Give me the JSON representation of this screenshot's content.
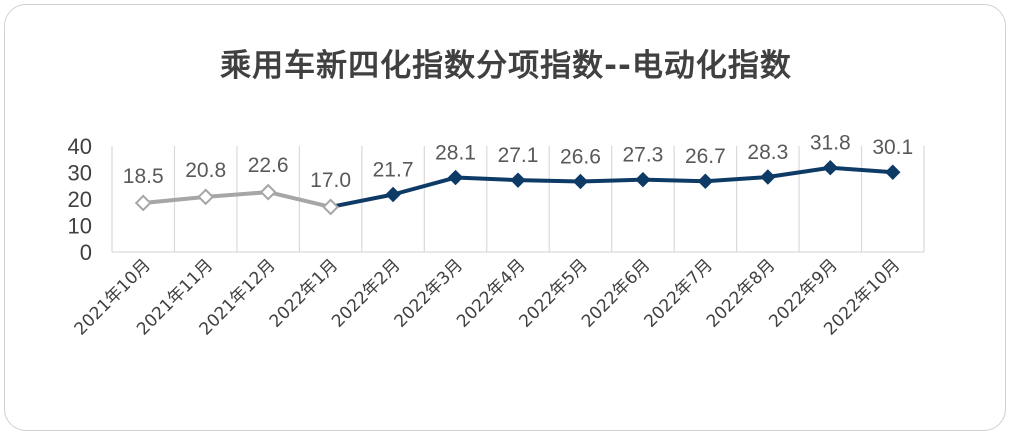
{
  "chart_data": {
    "type": "line",
    "title": "乘用车新四化指数分项指数--电动化指数",
    "xlabel": "",
    "ylabel": "",
    "ylim": [
      0,
      40
    ],
    "yticks": [
      "0",
      "10",
      "20",
      "30",
      "40"
    ],
    "grid": "vertical",
    "legend": "none",
    "categories": [
      "2021年10月",
      "2021年11月",
      "2021年12月",
      "2022年1月",
      "2022年2月",
      "2022年3月",
      "2022年4月",
      "2022年5月",
      "2022年6月",
      "2022年7月",
      "2022年8月",
      "2022年9月",
      "2022年10月"
    ],
    "values": [
      18.5,
      20.8,
      22.6,
      17.0,
      21.7,
      28.1,
      27.1,
      26.6,
      27.3,
      26.7,
      28.3,
      31.8,
      30.1
    ],
    "value_labels": [
      "18.5",
      "20.8",
      "22.6",
      "17.0",
      "21.7",
      "28.1",
      "27.1",
      "26.6",
      "27.3",
      "26.7",
      "28.3",
      "31.8",
      "30.1"
    ],
    "colors": {
      "history": "#a6a6a6",
      "current": "#0e3a66",
      "grid": "#d9d9d9"
    },
    "history_points": 4
  }
}
